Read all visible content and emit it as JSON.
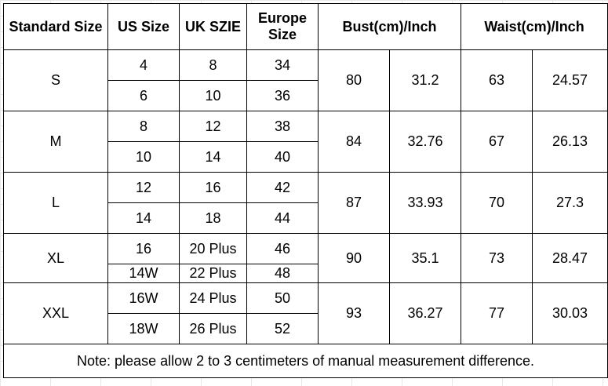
{
  "headers": {
    "standard_size": "Standard Size",
    "us_size": "US Size",
    "uk_size": "UK SZIE",
    "europe_line1": "Europe",
    "europe_line2": "Size",
    "bust": "Bust(cm)/Inch",
    "waist": "Waist(cm)/Inch"
  },
  "groups": [
    {
      "size": "S",
      "bust_cm": "80",
      "bust_in": "31.2",
      "waist_cm": "63",
      "waist_in": "24.57",
      "rows": [
        {
          "us": "4",
          "uk": "8",
          "eu": "34"
        },
        {
          "us": "6",
          "uk": "10",
          "eu": "36"
        }
      ]
    },
    {
      "size": "M",
      "bust_cm": "84",
      "bust_in": "32.76",
      "waist_cm": "67",
      "waist_in": "26.13",
      "rows": [
        {
          "us": "8",
          "uk": "12",
          "eu": "38"
        },
        {
          "us": "10",
          "uk": "14",
          "eu": "40"
        }
      ]
    },
    {
      "size": "L",
      "bust_cm": "87",
      "bust_in": "33.93",
      "waist_cm": "70",
      "waist_in": "27.3",
      "rows": [
        {
          "us": "12",
          "uk": "16",
          "eu": "42"
        },
        {
          "us": "14",
          "uk": "18",
          "eu": "44"
        }
      ]
    },
    {
      "size": "XL",
      "bust_cm": "90",
      "bust_in": "35.1",
      "waist_cm": "73",
      "waist_in": "28.47",
      "rows": [
        {
          "us": "16",
          "uk": "20 Plus",
          "eu": "46"
        },
        {
          "us": "14W",
          "uk": "22 Plus",
          "eu": "48"
        }
      ]
    },
    {
      "size": "XXL",
      "bust_cm": "93",
      "bust_in": "36.27",
      "waist_cm": "77",
      "waist_in": "30.03",
      "rows": [
        {
          "us": "16W",
          "uk": "24 Plus",
          "eu": "50"
        },
        {
          "us": "18W",
          "uk": "26 Plus",
          "eu": "52"
        }
      ]
    }
  ],
  "note": "Note: please allow 2 to 3 centimeters of manual measurement difference."
}
